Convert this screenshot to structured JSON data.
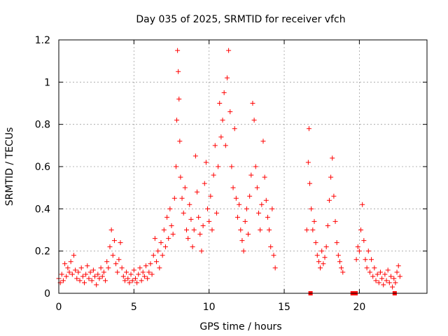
{
  "chart_data": {
    "type": "scatter",
    "title": "Day 035 of 2025, SRMTID for receiver vfch",
    "xlabel": "GPS time / hours",
    "ylabel": "SRMTID / TECUs",
    "xlim": [
      0,
      24.5
    ],
    "ylim": [
      0,
      1.2
    ],
    "x_ticks": [
      0,
      5,
      10,
      15,
      20
    ],
    "x_tick_labels": [
      "0",
      "5",
      "10",
      "15",
      "20"
    ],
    "y_ticks": [
      0,
      0.2,
      0.4,
      0.6,
      0.8,
      1.0,
      1.2
    ],
    "y_tick_labels": [
      "0",
      "0.2",
      "0.4",
      "0.6",
      "0.8",
      "1",
      "1.2"
    ],
    "grid": true,
    "marker_color": "#ff0000",
    "series": [
      {
        "name": "SRMTID",
        "marker": "plus",
        "points": [
          [
            0.0,
            0.07
          ],
          [
            0.1,
            0.05
          ],
          [
            0.2,
            0.09
          ],
          [
            0.3,
            0.06
          ],
          [
            0.4,
            0.14
          ],
          [
            0.5,
            0.08
          ],
          [
            0.6,
            0.12
          ],
          [
            0.7,
            0.1
          ],
          [
            0.8,
            0.15
          ],
          [
            0.9,
            0.09
          ],
          [
            1.0,
            0.18
          ],
          [
            1.1,
            0.11
          ],
          [
            1.2,
            0.07
          ],
          [
            1.3,
            0.1
          ],
          [
            1.4,
            0.06
          ],
          [
            1.5,
            0.12
          ],
          [
            1.6,
            0.08
          ],
          [
            1.7,
            0.05
          ],
          [
            1.8,
            0.09
          ],
          [
            1.9,
            0.13
          ],
          [
            2.0,
            0.07
          ],
          [
            2.1,
            0.1
          ],
          [
            2.2,
            0.06
          ],
          [
            2.3,
            0.11
          ],
          [
            2.4,
            0.08
          ],
          [
            2.5,
            0.04
          ],
          [
            2.6,
            0.09
          ],
          [
            2.7,
            0.07
          ],
          [
            2.8,
            0.12
          ],
          [
            2.9,
            0.08
          ],
          [
            3.0,
            0.1
          ],
          [
            3.1,
            0.06
          ],
          [
            3.2,
            0.15
          ],
          [
            3.3,
            0.12
          ],
          [
            3.4,
            0.22
          ],
          [
            3.5,
            0.3
          ],
          [
            3.6,
            0.18
          ],
          [
            3.7,
            0.25
          ],
          [
            3.8,
            0.14
          ],
          [
            3.9,
            0.1
          ],
          [
            4.0,
            0.16
          ],
          [
            4.1,
            0.24
          ],
          [
            4.2,
            0.12
          ],
          [
            4.3,
            0.08
          ],
          [
            4.4,
            0.06
          ],
          [
            4.5,
            0.1
          ],
          [
            4.6,
            0.07
          ],
          [
            4.7,
            0.05
          ],
          [
            4.8,
            0.09
          ],
          [
            4.9,
            0.06
          ],
          [
            5.0,
            0.11
          ],
          [
            5.1,
            0.07
          ],
          [
            5.2,
            0.05
          ],
          [
            5.3,
            0.09
          ],
          [
            5.4,
            0.12
          ],
          [
            5.5,
            0.06
          ],
          [
            5.6,
            0.1
          ],
          [
            5.7,
            0.08
          ],
          [
            5.8,
            0.13
          ],
          [
            5.9,
            0.07
          ],
          [
            6.0,
            0.1
          ],
          [
            6.1,
            0.14
          ],
          [
            6.2,
            0.09
          ],
          [
            6.3,
            0.18
          ],
          [
            6.4,
            0.26
          ],
          [
            6.5,
            0.15
          ],
          [
            6.6,
            0.2
          ],
          [
            6.7,
            0.12
          ],
          [
            6.8,
            0.24
          ],
          [
            6.9,
            0.18
          ],
          [
            7.0,
            0.3
          ],
          [
            7.1,
            0.22
          ],
          [
            7.2,
            0.36
          ],
          [
            7.3,
            0.26
          ],
          [
            7.4,
            0.4
          ],
          [
            7.5,
            0.32
          ],
          [
            7.6,
            0.28
          ],
          [
            7.7,
            0.45
          ],
          [
            7.8,
            0.6
          ],
          [
            7.85,
            0.82
          ],
          [
            7.9,
            1.15
          ],
          [
            7.95,
            1.05
          ],
          [
            8.0,
            0.92
          ],
          [
            8.05,
            0.72
          ],
          [
            8.1,
            0.55
          ],
          [
            8.2,
            0.45
          ],
          [
            8.3,
            0.38
          ],
          [
            8.4,
            0.5
          ],
          [
            8.5,
            0.3
          ],
          [
            8.6,
            0.26
          ],
          [
            8.7,
            0.42
          ],
          [
            8.8,
            0.35
          ],
          [
            8.9,
            0.22
          ],
          [
            9.0,
            0.3
          ],
          [
            9.1,
            0.65
          ],
          [
            9.2,
            0.48
          ],
          [
            9.3,
            0.36
          ],
          [
            9.4,
            0.28
          ],
          [
            9.5,
            0.2
          ],
          [
            9.6,
            0.32
          ],
          [
            9.7,
            0.52
          ],
          [
            9.8,
            0.62
          ],
          [
            9.9,
            0.4
          ],
          [
            10.0,
            0.34
          ],
          [
            10.1,
            0.46
          ],
          [
            10.2,
            0.3
          ],
          [
            10.3,
            0.56
          ],
          [
            10.4,
            0.7
          ],
          [
            10.5,
            0.38
          ],
          [
            10.6,
            0.6
          ],
          [
            10.7,
            0.9
          ],
          [
            10.8,
            0.74
          ],
          [
            10.9,
            0.82
          ],
          [
            11.0,
            0.95
          ],
          [
            11.1,
            0.7
          ],
          [
            11.2,
            1.02
          ],
          [
            11.3,
            1.15
          ],
          [
            11.4,
            0.86
          ],
          [
            11.5,
            0.6
          ],
          [
            11.6,
            0.5
          ],
          [
            11.7,
            0.78
          ],
          [
            11.8,
            0.45
          ],
          [
            11.9,
            0.36
          ],
          [
            12.0,
            0.42
          ],
          [
            12.1,
            0.3
          ],
          [
            12.2,
            0.25
          ],
          [
            12.3,
            0.2
          ],
          [
            12.4,
            0.34
          ],
          [
            12.5,
            0.4
          ],
          [
            12.6,
            0.28
          ],
          [
            12.7,
            0.46
          ],
          [
            12.8,
            0.56
          ],
          [
            12.9,
            0.9
          ],
          [
            13.0,
            0.82
          ],
          [
            13.1,
            0.6
          ],
          [
            13.2,
            0.5
          ],
          [
            13.3,
            0.38
          ],
          [
            13.4,
            0.3
          ],
          [
            13.5,
            0.42
          ],
          [
            13.6,
            0.72
          ],
          [
            13.7,
            0.55
          ],
          [
            13.8,
            0.44
          ],
          [
            13.9,
            0.36
          ],
          [
            14.0,
            0.3
          ],
          [
            14.1,
            0.22
          ],
          [
            14.2,
            0.4
          ],
          [
            14.3,
            0.18
          ],
          [
            14.4,
            0.12
          ],
          [
            16.5,
            0.3
          ],
          [
            16.6,
            0.62
          ],
          [
            16.65,
            0.78
          ],
          [
            16.7,
            0.52
          ],
          [
            16.8,
            0.4
          ],
          [
            16.9,
            0.3
          ],
          [
            17.0,
            0.34
          ],
          [
            17.1,
            0.24
          ],
          [
            17.2,
            0.18
          ],
          [
            17.3,
            0.15
          ],
          [
            17.4,
            0.12
          ],
          [
            17.5,
            0.2
          ],
          [
            17.6,
            0.14
          ],
          [
            17.7,
            0.17
          ],
          [
            17.8,
            0.22
          ],
          [
            17.9,
            0.32
          ],
          [
            18.0,
            0.44
          ],
          [
            18.1,
            0.55
          ],
          [
            18.2,
            0.64
          ],
          [
            18.3,
            0.46
          ],
          [
            18.4,
            0.34
          ],
          [
            18.5,
            0.24
          ],
          [
            18.6,
            0.18
          ],
          [
            18.7,
            0.15
          ],
          [
            18.8,
            0.12
          ],
          [
            18.9,
            0.1
          ],
          [
            19.8,
            0.16
          ],
          [
            19.9,
            0.22
          ],
          [
            20.0,
            0.2
          ],
          [
            20.1,
            0.3
          ],
          [
            20.2,
            0.42
          ],
          [
            20.3,
            0.25
          ],
          [
            20.4,
            0.16
          ],
          [
            20.5,
            0.12
          ],
          [
            20.6,
            0.2
          ],
          [
            20.7,
            0.1
          ],
          [
            20.8,
            0.16
          ],
          [
            20.9,
            0.08
          ],
          [
            21.0,
            0.12
          ],
          [
            21.1,
            0.06
          ],
          [
            21.2,
            0.09
          ],
          [
            21.3,
            0.05
          ],
          [
            21.4,
            0.1
          ],
          [
            21.5,
            0.07
          ],
          [
            21.6,
            0.04
          ],
          [
            21.7,
            0.09
          ],
          [
            21.8,
            0.06
          ],
          [
            21.9,
            0.11
          ],
          [
            22.0,
            0.05
          ],
          [
            22.1,
            0.08
          ],
          [
            22.2,
            0.03
          ],
          [
            22.3,
            0.07
          ],
          [
            22.4,
            0.05
          ],
          [
            22.5,
            0.1
          ],
          [
            22.6,
            0.13
          ],
          [
            22.7,
            0.08
          ]
        ]
      },
      {
        "name": "near-zero",
        "marker": "square",
        "points": [
          [
            16.75,
            0.0
          ],
          [
            19.55,
            0.0
          ],
          [
            19.75,
            0.0
          ],
          [
            22.35,
            0.0
          ]
        ]
      }
    ]
  }
}
